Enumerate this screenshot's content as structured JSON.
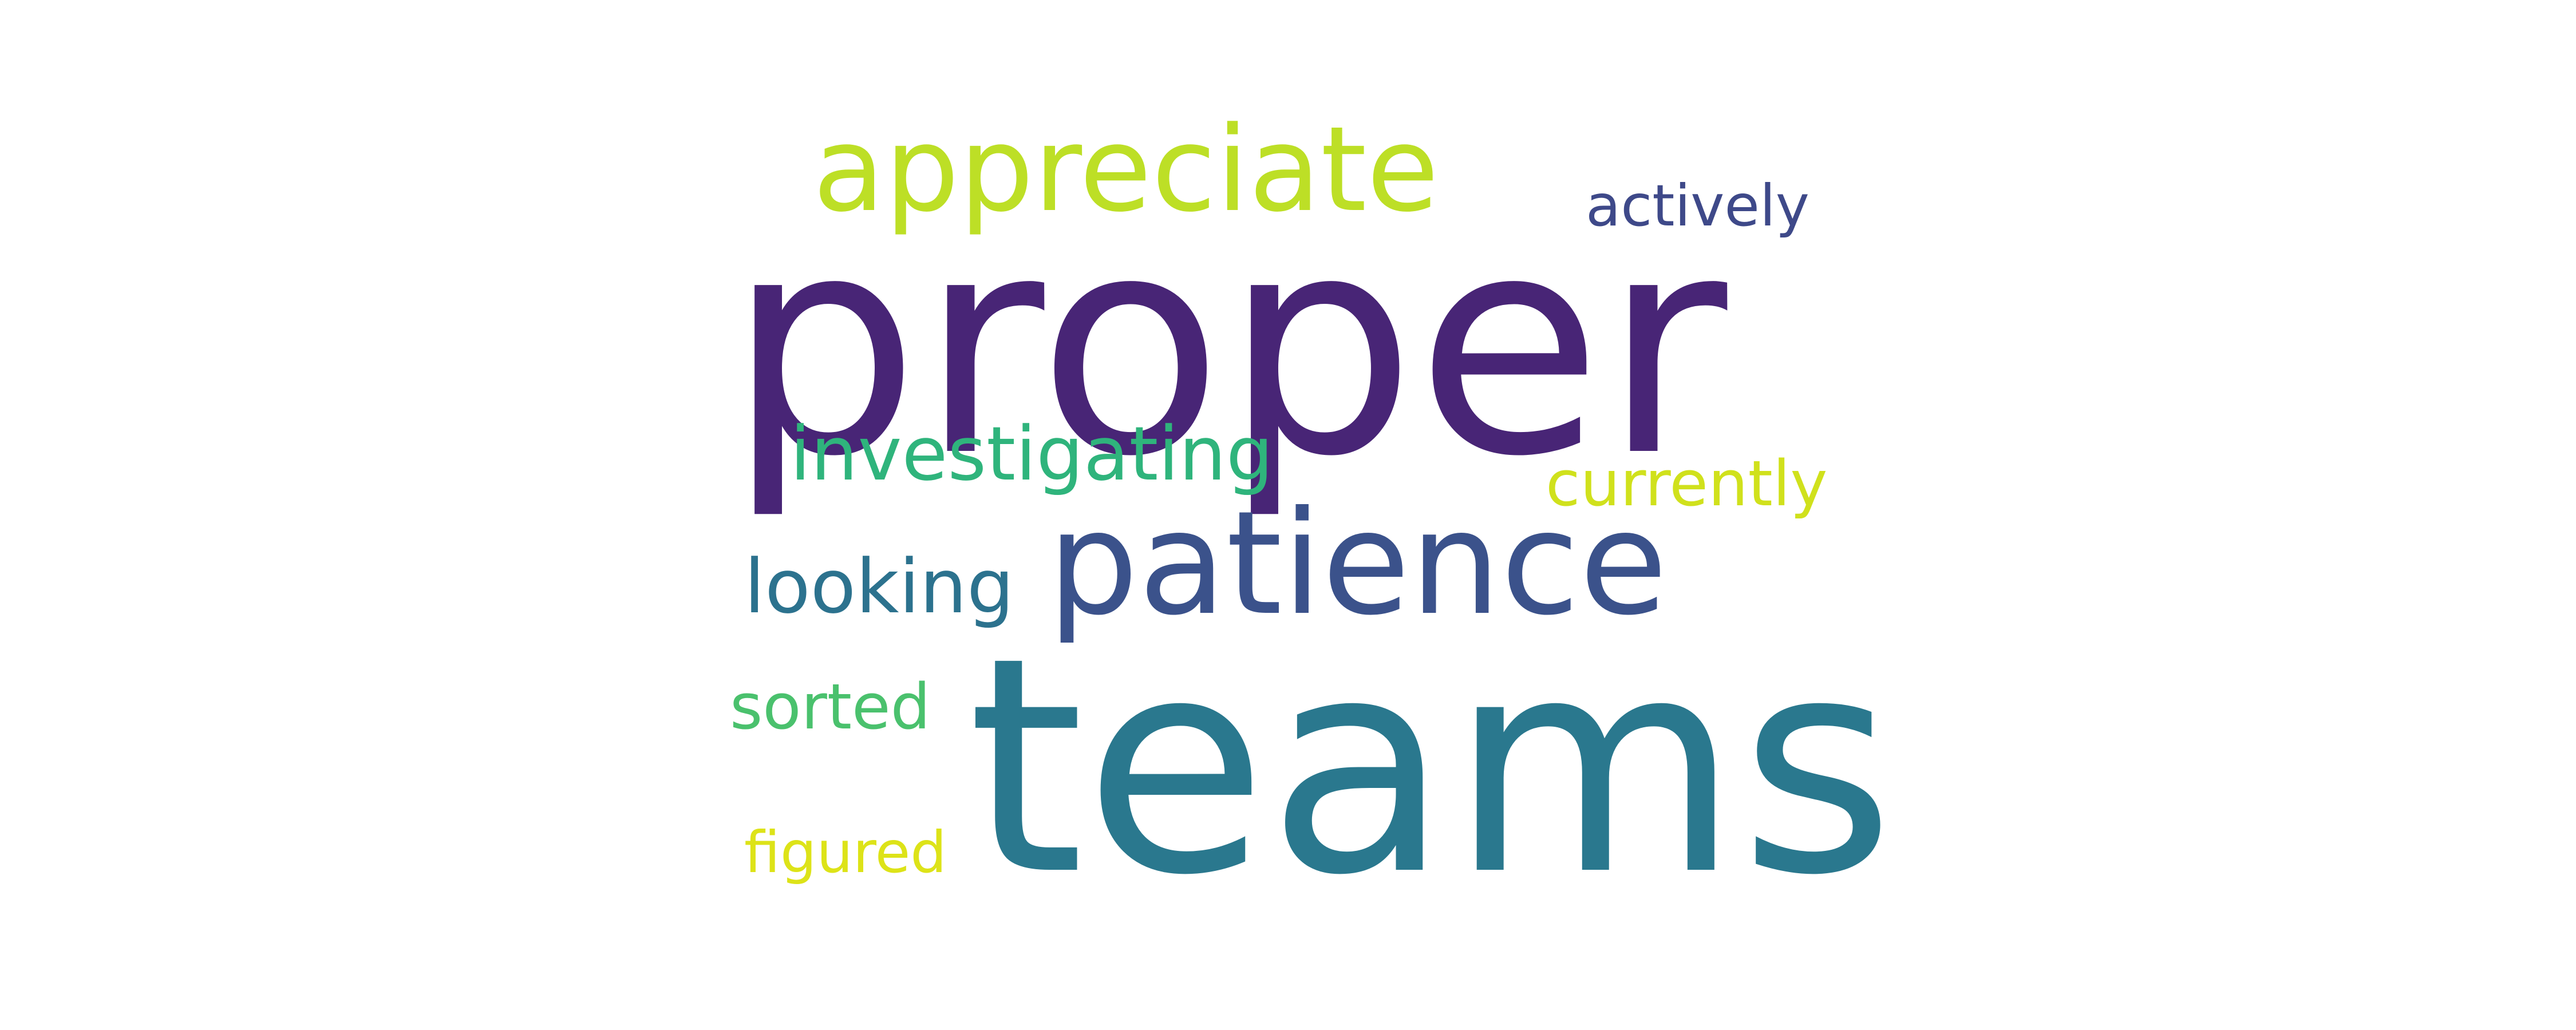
{
  "words": [
    {
      "text": "proper",
      "color": "#482576"
    },
    {
      "text": "teams",
      "color": "#2a788e"
    },
    {
      "text": "patience",
      "color": "#3b528b"
    },
    {
      "text": "appreciate",
      "color": "#bddf26"
    },
    {
      "text": "investigating",
      "color": "#2fb47c"
    },
    {
      "text": "looking",
      "color": "#2c728e"
    },
    {
      "text": "currently",
      "color": "#d0e11c"
    },
    {
      "text": "actively",
      "color": "#3e4989"
    },
    {
      "text": "sorted",
      "color": "#4ac16d"
    },
    {
      "text": "figured",
      "color": "#dde318"
    }
  ]
}
